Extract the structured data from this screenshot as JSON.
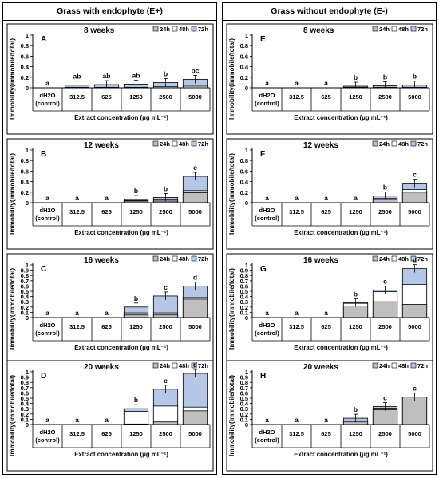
{
  "columns": [
    {
      "title": "Grass with endophyte (E+)"
    },
    {
      "title": "Grass without endophyte (E-)"
    }
  ],
  "colors": {
    "24h": "#bfbfbf",
    "48h": "#ffffff",
    "72h": "#b4c7e7",
    "edge": "#000000"
  },
  "chart_data": [
    {
      "type": "bar",
      "panel": "A",
      "title": "8 weeks",
      "categories": [
        "dH2O (control)",
        "312.5",
        "625",
        "1250",
        "2500",
        "5000"
      ],
      "xlabel": "Extract concentration (μg mL⁻¹)",
      "ylabel": "Immobility(immobile/total)",
      "ylim": [
        0,
        1
      ],
      "yticks": [
        0,
        0.2,
        0.4,
        0.6,
        0.8,
        1
      ],
      "legend": [
        "24h",
        "48h",
        "72h"
      ],
      "legend_position": "top-right",
      "series": [
        {
          "name": "24h",
          "values": [
            0,
            0,
            0,
            0,
            0,
            0
          ]
        },
        {
          "name": "48h",
          "values": [
            0,
            0.01,
            0.01,
            0.01,
            0.02,
            0.03
          ]
        },
        {
          "name": "72h",
          "values": [
            0,
            0.05,
            0.06,
            0.07,
            0.1,
            0.16
          ]
        }
      ],
      "letters": [
        "a",
        "ab",
        "ab",
        "ab",
        "b",
        "bc"
      ]
    },
    {
      "type": "bar",
      "panel": "B",
      "title": "12 weeks",
      "categories": [
        "dH2O (control)",
        "312.5",
        "625",
        "1250",
        "2500",
        "5000"
      ],
      "xlabel": "Extract concentration (μg mL⁻¹)",
      "ylabel": "Immobility(immobile/total)",
      "ylim": [
        0,
        1
      ],
      "yticks": [
        0,
        0.2,
        0.4,
        0.6,
        0.8,
        1
      ],
      "legend": [
        "24h",
        "48h",
        "72h"
      ],
      "legend_position": "top-right",
      "series": [
        {
          "name": "24h",
          "values": [
            0,
            0,
            0,
            0.03,
            0.03,
            0.19
          ]
        },
        {
          "name": "48h",
          "values": [
            0,
            0,
            0,
            0.04,
            0.05,
            0.23
          ]
        },
        {
          "name": "72h",
          "values": [
            0,
            0,
            0,
            0.06,
            0.1,
            0.5
          ]
        }
      ],
      "letters": [
        "a",
        "a",
        "a",
        "b",
        "b",
        "c"
      ]
    },
    {
      "type": "bar",
      "panel": "C",
      "title": "16 weeks",
      "categories": [
        "dH2O (control)",
        "312.5",
        "625",
        "1250",
        "2500",
        "5000"
      ],
      "xlabel": "Extract concentration (μg mL⁻¹)",
      "ylabel": "Immobility(immobile/total)",
      "ylim": [
        0,
        1
      ],
      "yticks": [
        0,
        0.1,
        0.2,
        0.3,
        0.4,
        0.5,
        0.6,
        0.7,
        0.8,
        0.9,
        1
      ],
      "legend": [
        "24h",
        "48h",
        "72h"
      ],
      "legend_position": "top-right",
      "series": [
        {
          "name": "24h",
          "values": [
            0,
            0,
            0,
            0.05,
            0.05,
            0.35
          ]
        },
        {
          "name": "48h",
          "values": [
            0,
            0,
            0,
            0.09,
            0.09,
            0.38
          ]
        },
        {
          "name": "72h",
          "values": [
            0,
            0,
            0,
            0.2,
            0.41,
            0.6
          ]
        }
      ],
      "letters": [
        "a",
        "a",
        "a",
        "b",
        "c",
        "d"
      ]
    },
    {
      "type": "bar",
      "panel": "D",
      "title": "20 weeks",
      "categories": [
        "dH2O (control)",
        "312.5",
        "625",
        "1250",
        "2500",
        "5000"
      ],
      "xlabel": "Extract concentration (μg mL⁻¹)",
      "ylabel": "Immobility(immobile/total)",
      "ylim": [
        0,
        1
      ],
      "yticks": [
        0,
        0.1,
        0.2,
        0.3,
        0.4,
        0.5,
        0.6,
        0.7,
        0.8,
        0.9,
        1
      ],
      "legend": [
        "24h",
        "48h",
        "72h"
      ],
      "legend_position": "top-right",
      "series": [
        {
          "name": "24h",
          "values": [
            0,
            0,
            0,
            0.01,
            0.05,
            0.26
          ]
        },
        {
          "name": "48h",
          "values": [
            0,
            0,
            0,
            0.25,
            0.35,
            0.33
          ]
        },
        {
          "name": "72h",
          "values": [
            0,
            0,
            0,
            0.3,
            0.67,
            0.97
          ]
        }
      ],
      "letters": [
        "a",
        "a",
        "a",
        "b",
        "c",
        "d"
      ]
    },
    {
      "type": "bar",
      "panel": "E",
      "title": "8 weeks",
      "categories": [
        "dH2O (control)",
        "312.5",
        "625",
        "1250",
        "2500",
        "5000"
      ],
      "xlabel": "Extract concentration (μg mL⁻¹)",
      "ylabel": "Immobility(immobile/total)",
      "ylim": [
        0,
        1
      ],
      "yticks": [
        0,
        0.2,
        0.4,
        0.6,
        0.8,
        1
      ],
      "legend": [
        "24h",
        "48h",
        "72h"
      ],
      "legend_position": "top-right",
      "series": [
        {
          "name": "24h",
          "values": [
            0,
            0,
            0,
            0,
            0,
            0
          ]
        },
        {
          "name": "48h",
          "values": [
            0,
            0,
            0,
            0.01,
            0.01,
            0.01
          ]
        },
        {
          "name": "72h",
          "values": [
            0,
            0,
            0,
            0.03,
            0.04,
            0.05
          ]
        }
      ],
      "letters": [
        "a",
        "a",
        "a",
        "b",
        "b",
        "b"
      ]
    },
    {
      "type": "bar",
      "panel": "F",
      "title": "12 weeks",
      "categories": [
        "dH2O (control)",
        "312.5",
        "625",
        "1250",
        "2500",
        "5000"
      ],
      "xlabel": "Extract concentration (μg mL⁻¹)",
      "ylabel": "Immobility(immobile/total)",
      "ylim": [
        0,
        1
      ],
      "yticks": [
        0,
        0.2,
        0.4,
        0.6,
        0.8,
        1
      ],
      "legend": [
        "24h",
        "48h",
        "72h"
      ],
      "legend_position": "top-right",
      "series": [
        {
          "name": "24h",
          "values": [
            0,
            0,
            0,
            0,
            0.06,
            0.2
          ]
        },
        {
          "name": "48h",
          "values": [
            0,
            0,
            0,
            0,
            0.08,
            0.25
          ]
        },
        {
          "name": "72h",
          "values": [
            0,
            0,
            0,
            0,
            0.13,
            0.37
          ]
        }
      ],
      "letters": [
        "a",
        "a",
        "a",
        "a",
        "b",
        "c"
      ]
    },
    {
      "type": "bar",
      "panel": "G",
      "title": "16 weeks",
      "categories": [
        "dH2O (control)",
        "312.5",
        "625",
        "1250",
        "2500",
        "5000"
      ],
      "xlabel": "Extract concentration (μg mL⁻¹)",
      "ylabel": "Immobility(immobile/total)",
      "ylim": [
        0,
        1
      ],
      "yticks": [
        0,
        0.1,
        0.2,
        0.3,
        0.4,
        0.5,
        0.6,
        0.7,
        0.8,
        0.9,
        1
      ],
      "legend": [
        "24h",
        "48h",
        "72h"
      ],
      "legend_position": "top-right",
      "series": [
        {
          "name": "24h",
          "values": [
            0,
            0,
            0,
            0.22,
            0.3,
            0.25
          ]
        },
        {
          "name": "48h",
          "values": [
            0,
            0,
            0,
            0.27,
            0.49,
            0.63
          ]
        },
        {
          "name": "72h",
          "values": [
            0,
            0,
            0,
            0.28,
            0.52,
            0.93
          ]
        }
      ],
      "letters": [
        "a",
        "a",
        "a",
        "b",
        "c",
        "d"
      ]
    },
    {
      "type": "bar",
      "panel": "H",
      "title": "20 weeks",
      "categories": [
        "dH2O (control)",
        "312.5",
        "625",
        "1250",
        "2500",
        "5000"
      ],
      "xlabel": "Extract concentration (μg mL⁻¹)",
      "ylabel": "Immobility(immobile/total)",
      "ylim": [
        0,
        1
      ],
      "yticks": [
        0,
        0.1,
        0.2,
        0.3,
        0.4,
        0.5,
        0.6,
        0.7,
        0.8,
        0.9,
        1
      ],
      "legend": [
        "24h",
        "48h",
        "72h"
      ],
      "legend_position": "top-right",
      "series": [
        {
          "name": "24h",
          "values": [
            0,
            0,
            0,
            0.05,
            0.28,
            0.52
          ]
        },
        {
          "name": "48h",
          "values": [
            0,
            0,
            0,
            0.07,
            0.31,
            0.52
          ]
        },
        {
          "name": "72h",
          "values": [
            0,
            0,
            0,
            0.12,
            0.34,
            0.52
          ]
        }
      ],
      "letters": [
        "a",
        "a",
        "a",
        "b",
        "c",
        "c"
      ]
    }
  ]
}
